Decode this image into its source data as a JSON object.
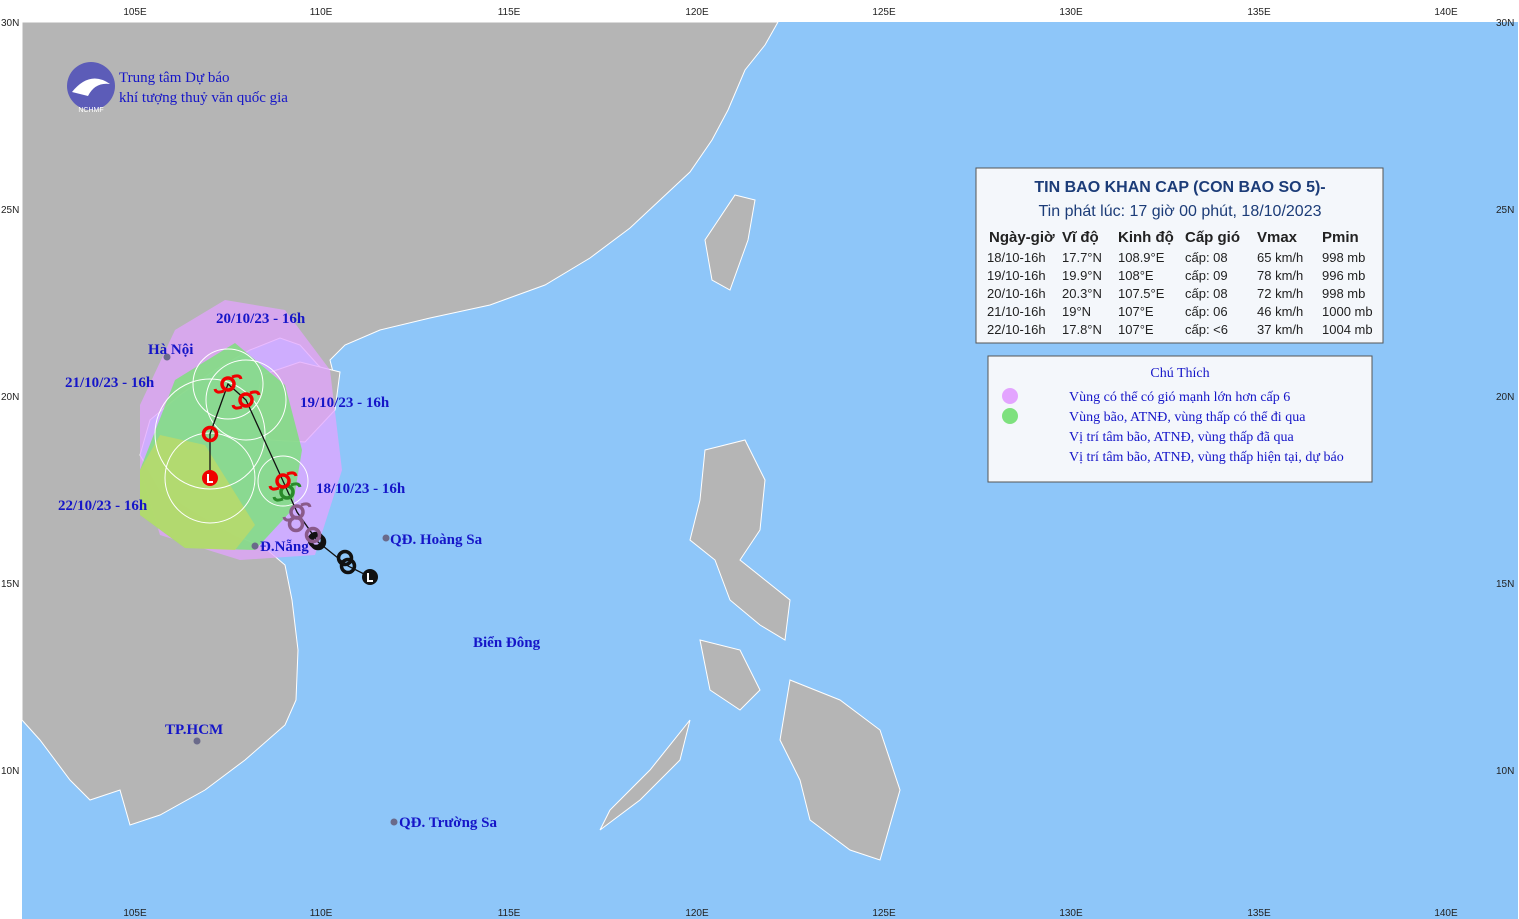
{
  "header": {
    "org_line1": "Trung tâm Dự báo",
    "org_line2": "khí tượng thuỷ văn quốc gia",
    "logo_text": "NCHMF"
  },
  "axes": {
    "lon": [
      "105E",
      "110E",
      "115E",
      "120E",
      "125E",
      "130E",
      "135E",
      "140E"
    ],
    "lat": [
      "30N",
      "25N",
      "20N",
      "15N",
      "10N"
    ]
  },
  "bulletin": {
    "title": "TIN BAO KHAN CAP (CON BAO SO 5)-",
    "issued": "Tin phát lúc: 17 giờ 00 phút, 18/10/2023",
    "columns": [
      "Ngày-giờ",
      "Vĩ độ",
      "Kinh độ",
      "Cấp gió",
      "Vmax",
      "Pmin"
    ],
    "rows": [
      [
        "18/10-16h",
        "17.7°N",
        "108.9°E",
        "cấp: 08",
        "65 km/h",
        "998 mb"
      ],
      [
        "19/10-16h",
        "19.9°N",
        "108°E",
        "cấp: 09",
        "78 km/h",
        "996 mb"
      ],
      [
        "20/10-16h",
        "20.3°N",
        "107.5°E",
        "cấp: 08",
        "72 km/h",
        "998 mb"
      ],
      [
        "21/10-16h",
        "19°N",
        "107°E",
        "cấp: 06",
        "46 km/h",
        "1000 mb"
      ],
      [
        "22/10-16h",
        "17.8°N",
        "107°E",
        "cấp: <6",
        "37 km/h",
        "1004 mb"
      ]
    ]
  },
  "legend": {
    "title": "Chú Thích",
    "items": [
      "Vùng có thể có gió mạnh lớn hơn cấp 6",
      "Vùng bão, ATNĐ, vùng thấp có thể đi qua",
      "Vị trí tâm bão, ATNĐ, vùng thấp đã qua",
      "Vị trí tâm bão, ATNĐ, vùng thấp hiện tại, dự báo"
    ]
  },
  "places": [
    "Hà Nội",
    "Đ.Nẵng",
    "TP.HCM",
    "QĐ. Hoàng Sa",
    "QĐ. Trường Sa",
    "Biển Đông"
  ],
  "track_labels": [
    "20/10/23 - 16h",
    "21/10/23 - 16h",
    "19/10/23 - 16h",
    "18/10/23 - 16h",
    "22/10/23 - 16h"
  ]
}
